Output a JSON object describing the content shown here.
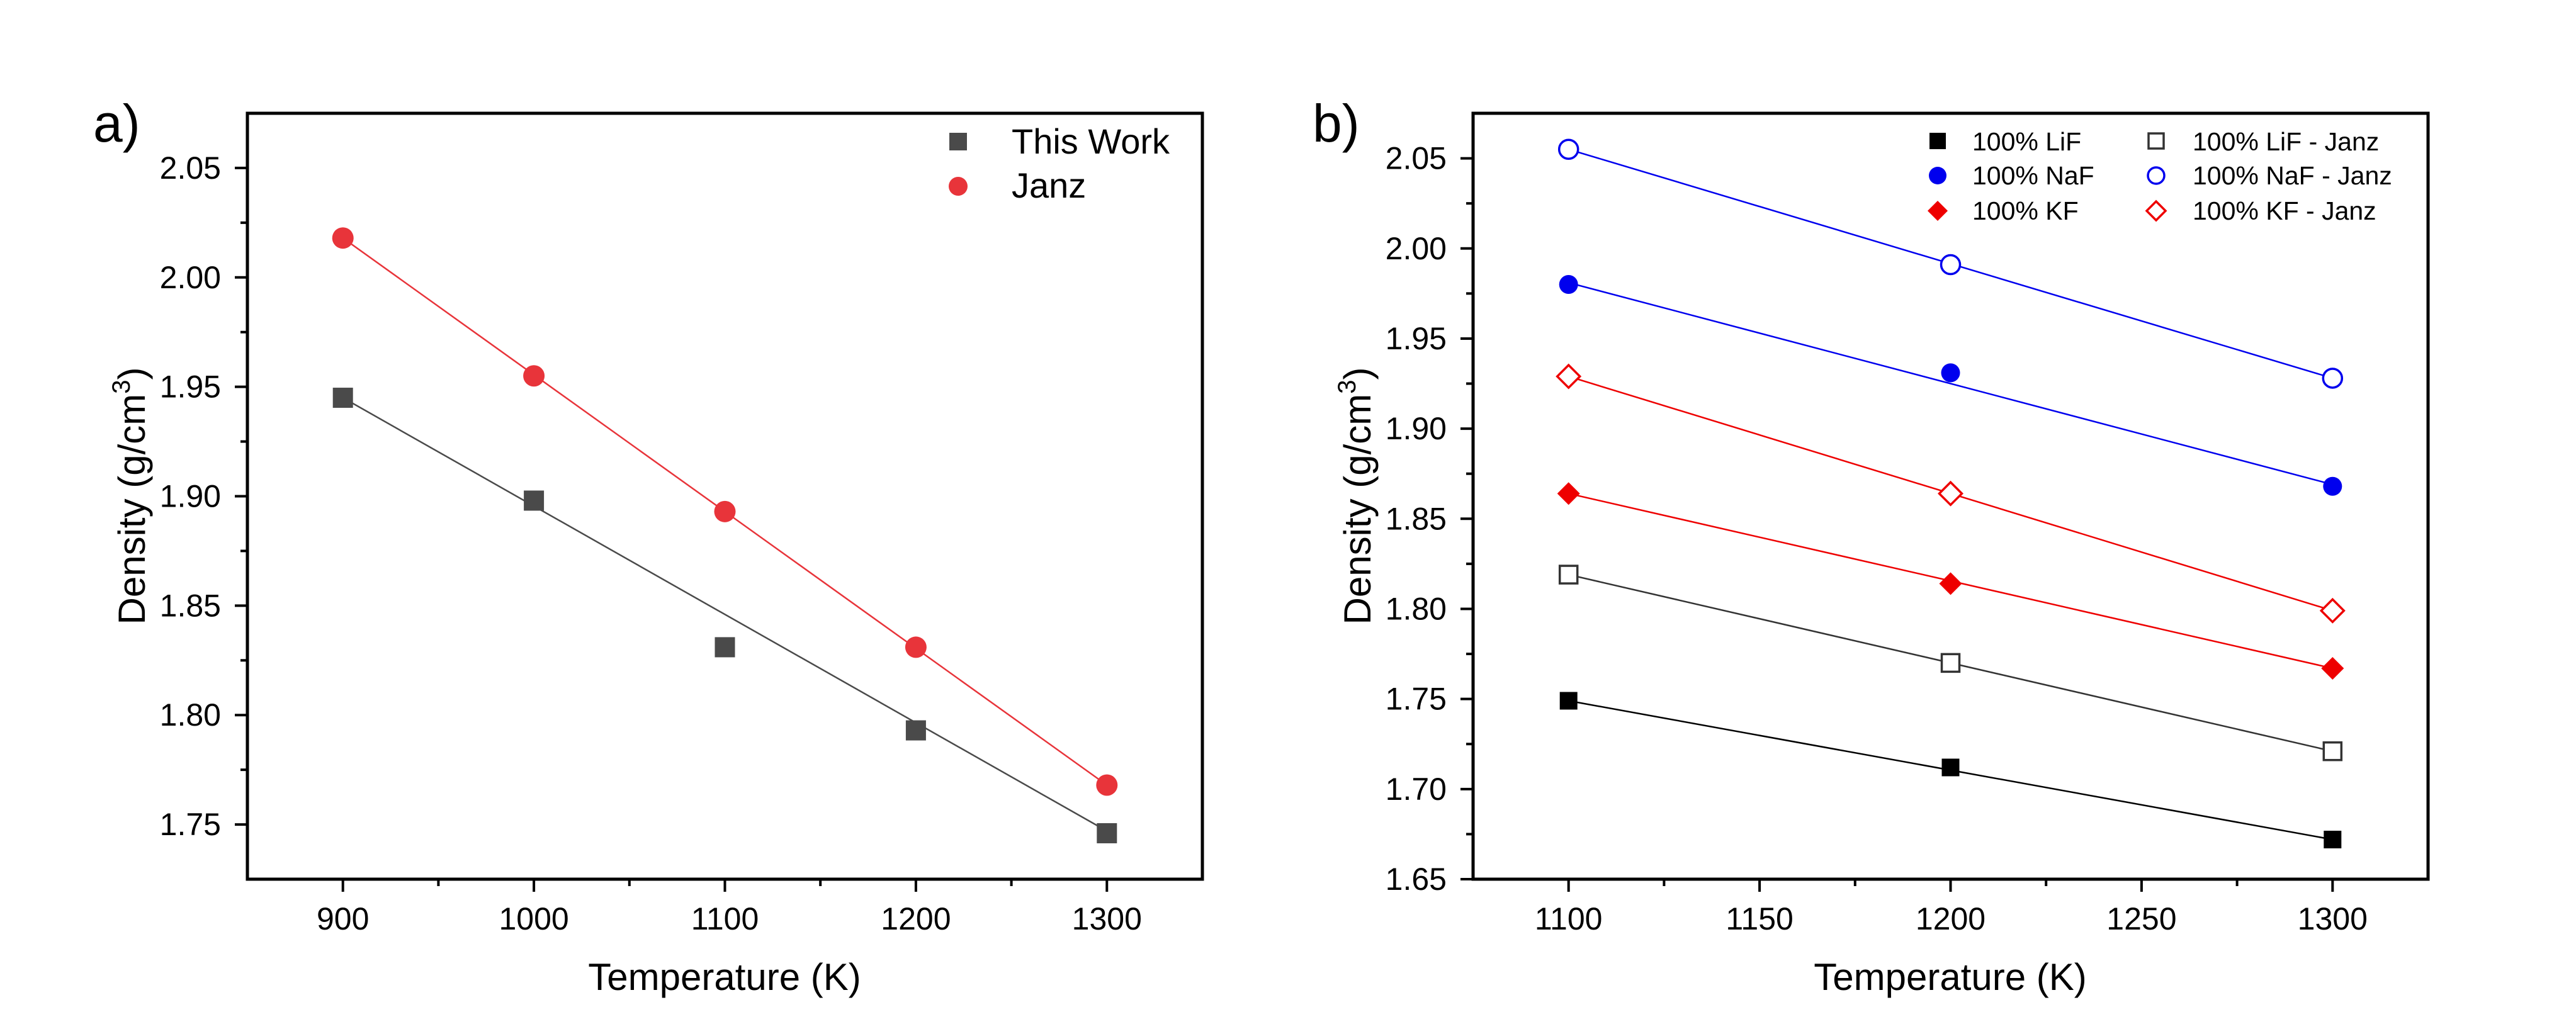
{
  "figure": {
    "panels": [
      "a)",
      "b)"
    ]
  },
  "chart_data": [
    {
      "type": "scatter",
      "panel_label": "a)",
      "title": "",
      "xlabel": "Temperature (K)",
      "ylabel": "Density (g/cm³)",
      "ylabel_parts": {
        "main": "Density (g/cm",
        "sup": "3",
        "tail": ")"
      },
      "xlim": [
        850,
        1350
      ],
      "ylim": [
        1.725,
        2.075
      ],
      "xticks": [
        900,
        1000,
        1100,
        1200,
        1300
      ],
      "yticks": [
        1.75,
        1.8,
        1.85,
        1.9,
        1.95,
        2.0,
        2.05
      ],
      "xtick_labels": [
        "900",
        "1000",
        "1100",
        "1200",
        "1300"
      ],
      "ytick_labels": [
        "1.75",
        "1.80",
        "1.85",
        "1.90",
        "1.95",
        "2.00",
        "2.05"
      ],
      "legend_position": "top-right",
      "grid": false,
      "series": [
        {
          "name": "This Work",
          "marker": "square",
          "filled": true,
          "color": "#4a4a4a",
          "x": [
            900,
            1000,
            1100,
            1200,
            1300
          ],
          "y": [
            1.945,
            1.898,
            1.831,
            1.793,
            1.746
          ],
          "fit": {
            "x": [
              900,
              1300
            ],
            "y": [
              1.945,
              1.747
            ]
          }
        },
        {
          "name": "Janz",
          "marker": "circle",
          "filled": true,
          "color": "#e8343a",
          "x": [
            900,
            1000,
            1100,
            1200,
            1300
          ],
          "y": [
            2.018,
            1.955,
            1.893,
            1.831,
            1.768
          ],
          "fit": {
            "x": [
              900,
              1300
            ],
            "y": [
              2.018,
              1.768
            ]
          }
        }
      ]
    },
    {
      "type": "scatter",
      "panel_label": "b)",
      "title": "",
      "xlabel": "Temperature (K)",
      "ylabel": "Density (g/cm³)",
      "ylabel_parts": {
        "main": "Density (g/cm",
        "sup": "3",
        "tail": ")"
      },
      "xlim": [
        1075,
        1325
      ],
      "ylim": [
        1.65,
        2.075
      ],
      "xticks": [
        1100,
        1150,
        1200,
        1250,
        1300
      ],
      "yticks": [
        1.65,
        1.7,
        1.75,
        1.8,
        1.85,
        1.9,
        1.95,
        2.0,
        2.05
      ],
      "xtick_labels": [
        "1100",
        "1150",
        "1200",
        "1250",
        "1300"
      ],
      "ytick_labels": [
        "1.65",
        "1.70",
        "1.75",
        "1.80",
        "1.85",
        "1.90",
        "1.95",
        "2.00",
        "2.05"
      ],
      "legend_position": "top-right",
      "legend_columns": 2,
      "grid": false,
      "series": [
        {
          "name": "100% LiF",
          "marker": "square",
          "filled": true,
          "color": "#000000",
          "x": [
            1100,
            1200,
            1300
          ],
          "y": [
            1.749,
            1.712,
            1.672
          ],
          "fit": {
            "x": [
              1100,
              1300
            ],
            "y": [
              1.749,
              1.672
            ]
          }
        },
        {
          "name": "100% NaF",
          "marker": "circle",
          "filled": true,
          "color": "#0000ee",
          "x": [
            1100,
            1200,
            1300
          ],
          "y": [
            1.98,
            1.931,
            1.868
          ],
          "fit": {
            "x": [
              1100,
              1300
            ],
            "y": [
              1.981,
              1.869
            ]
          }
        },
        {
          "name": "100% KF",
          "marker": "diamond",
          "filled": true,
          "color": "#ee0000",
          "x": [
            1100,
            1200,
            1300
          ],
          "y": [
            1.864,
            1.814,
            1.767
          ],
          "fit": {
            "x": [
              1100,
              1300
            ],
            "y": [
              1.864,
              1.767
            ]
          }
        },
        {
          "name": "100% LiF - Janz",
          "marker": "square",
          "filled": false,
          "color": "#333333",
          "x": [
            1100,
            1200,
            1300
          ],
          "y": [
            1.819,
            1.77,
            1.721
          ],
          "fit": {
            "x": [
              1100,
              1300
            ],
            "y": [
              1.819,
              1.721
            ]
          }
        },
        {
          "name": "100% NaF - Janz",
          "marker": "circle",
          "filled": false,
          "color": "#0000ee",
          "x": [
            1100,
            1200,
            1300
          ],
          "y": [
            2.055,
            1.991,
            1.928
          ],
          "fit": {
            "x": [
              1100,
              1300
            ],
            "y": [
              2.055,
              1.928
            ]
          }
        },
        {
          "name": "100% KF - Janz",
          "marker": "diamond",
          "filled": false,
          "color": "#ee0000",
          "x": [
            1100,
            1200,
            1300
          ],
          "y": [
            1.929,
            1.864,
            1.799
          ],
          "fit": {
            "x": [
              1100,
              1300
            ],
            "y": [
              1.929,
              1.799
            ]
          }
        }
      ]
    }
  ]
}
